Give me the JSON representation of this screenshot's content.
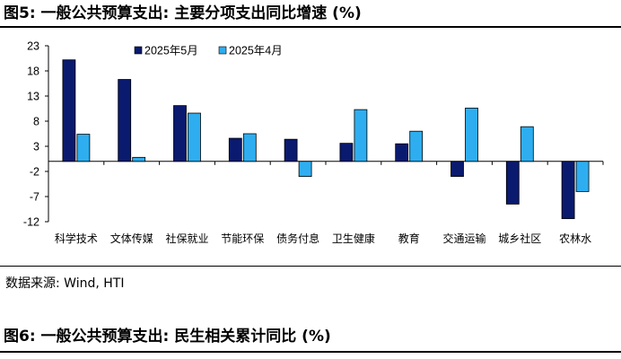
{
  "figure5": {
    "title": "图5:  一般公共预算支出: 主要分项支出同比增速 (%)",
    "source": "数据来源: Wind, HTI"
  },
  "figure6": {
    "title": "图6:  一般公共预算支出: 民生相关累计同比 (%)"
  },
  "chart_data": {
    "type": "bar",
    "title": "",
    "xlabel": "",
    "ylabel": "",
    "ylim": [
      -12,
      23
    ],
    "yticks": [
      "23",
      "18",
      "13",
      "8",
      "3",
      "-2",
      "-7",
      "-12"
    ],
    "legend_position": "top",
    "grid": false,
    "categories": [
      "科学技术",
      "文体传媒",
      "社保就业",
      "节能环保",
      "债务付息",
      "卫生健康",
      "教育",
      "交通运输",
      "城乡社区",
      "农林水"
    ],
    "series": [
      {
        "name": "2025年5月",
        "color": "#0a1a6e",
        "values": [
          20.2,
          16.3,
          11.1,
          4.6,
          4.4,
          3.6,
          3.5,
          -3.0,
          -8.5,
          -11.4
        ]
      },
      {
        "name": "2025年4月",
        "color": "#2eaef0",
        "values": [
          5.4,
          0.8,
          9.6,
          5.5,
          -3.0,
          10.3,
          6.0,
          10.6,
          6.9,
          -6.0
        ]
      }
    ]
  }
}
